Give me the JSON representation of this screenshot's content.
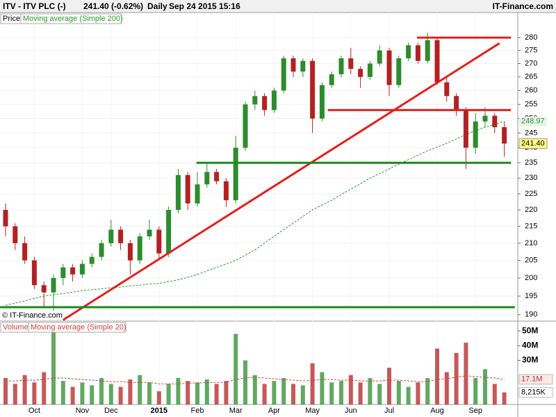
{
  "header": {
    "symbol": "ITV - ITV PLC (-)",
    "quote": "241.40 (-0.62%)",
    "interval": "Daily",
    "timestamp": "Sep 24 2015 15:16",
    "brand": "IT-Finance.com"
  },
  "watermark": "© IT-Finance.com",
  "chart_data": [
    {
      "type": "candlestick",
      "legend": "Price",
      "log_scale": true,
      "grid": true,
      "up_color": "#2e8b2e",
      "down_color": "#b22222",
      "categories": [
        null,
        null,
        null,
        "Oct",
        null,
        null,
        null,
        null,
        "Nov",
        null,
        null,
        "Dec",
        null,
        null,
        null,
        null,
        "2015",
        null,
        null,
        null,
        "Feb",
        null,
        null,
        null,
        "Mar",
        null,
        null,
        null,
        "Apr",
        null,
        null,
        null,
        "May",
        null,
        null,
        null,
        "Jun",
        null,
        null,
        null,
        "Jul",
        null,
        null,
        null,
        null,
        "Aug",
        null,
        null,
        null,
        "Sep",
        null,
        null,
        null
      ],
      "open": [
        220,
        215,
        210,
        205,
        198,
        196,
        200,
        203,
        201,
        204,
        206,
        210,
        214,
        210,
        205,
        212,
        214,
        207,
        220,
        231,
        222,
        228,
        232,
        229,
        223,
        240,
        255,
        258,
        253,
        260,
        272,
        267,
        271,
        250,
        262,
        266,
        272,
        268,
        265,
        270,
        275,
        262,
        272,
        277,
        271,
        279,
        263,
        258,
        253,
        240,
        249,
        251,
        247
      ],
      "high": [
        222,
        216,
        212,
        206,
        199,
        201,
        204,
        204,
        205,
        207,
        211,
        217,
        215,
        211,
        213,
        217,
        215,
        221,
        233,
        232,
        232,
        235,
        233,
        230,
        244,
        256,
        260,
        259,
        261,
        273,
        273,
        272,
        272,
        263,
        267,
        273,
        276,
        269,
        271,
        277,
        276,
        273,
        278,
        278,
        282,
        280,
        265,
        259,
        254,
        252,
        254,
        252,
        249
      ],
      "low": [
        212,
        208,
        204,
        197,
        192,
        191,
        198,
        199,
        200,
        203,
        205,
        209,
        208,
        201,
        204,
        211,
        205,
        206,
        219,
        220,
        221,
        227,
        228,
        221,
        222,
        239,
        253,
        251,
        252,
        259,
        265,
        265,
        245,
        249,
        261,
        265,
        266,
        261,
        264,
        269,
        258,
        261,
        271,
        270,
        270,
        262,
        256,
        251,
        233,
        238,
        247,
        245,
        237
      ],
      "close": [
        215,
        210,
        205,
        198,
        196,
        200,
        203,
        201,
        204,
        206,
        210,
        214,
        210,
        205,
        212,
        214,
        207,
        220,
        231,
        222,
        228,
        232,
        229,
        223,
        240,
        255,
        258,
        253,
        260,
        272,
        267,
        271,
        250,
        262,
        266,
        272,
        268,
        265,
        270,
        275,
        262,
        272,
        277,
        271,
        279,
        263,
        258,
        253,
        240,
        249,
        251,
        247,
        241.4
      ],
      "value_labels": [
        null,
        null,
        null,
        null,
        null,
        null,
        null,
        null,
        null,
        null,
        null,
        null,
        null,
        null,
        null,
        null,
        null,
        null,
        null,
        null,
        null,
        null,
        null,
        null,
        null,
        null,
        null,
        null,
        null,
        null,
        null,
        null,
        null,
        null,
        null,
        null,
        null,
        null,
        null,
        null,
        null,
        null,
        null,
        null,
        null,
        null,
        null,
        null,
        null,
        null,
        null,
        null,
        "241.40"
      ],
      "ylim": [
        188.3,
        290
      ],
      "yticks": [
        190,
        195,
        200,
        205,
        210,
        215,
        220,
        225,
        230,
        235,
        240,
        245,
        250,
        255,
        260,
        265,
        270,
        275,
        280
      ],
      "overlays": [
        {
          "name": "Moving average (Simple 200)",
          "color": "#2a9a2a",
          "values": [
            192.5,
            193.1,
            193.7,
            194.4,
            195,
            195.4,
            195.7,
            196.1,
            196.5,
            196.8,
            197,
            197.3,
            197.5,
            197.8,
            198,
            198.3,
            198.5,
            199,
            199.5,
            200.2,
            201,
            202,
            203,
            204,
            205,
            206.5,
            208,
            210,
            212,
            214,
            216,
            218,
            220,
            221.5,
            223,
            224.8,
            226.5,
            228.2,
            230,
            231.5,
            233,
            234.5,
            236,
            237.5,
            239,
            240.2,
            241.5,
            243,
            244.5,
            245.8,
            247,
            248,
            248.97
          ]
        }
      ],
      "trendlines": [
        {
          "color": "#e02020",
          "start": [
            6,
            188.6
          ],
          "end": [
            51.5,
            277.8
          ]
        },
        {
          "color": "#e02020",
          "start": [
            42.9,
            280
          ],
          "end": [
            52.7,
            280
          ]
        },
        {
          "color": "#e02020",
          "start": [
            33.6,
            253
          ],
          "end": [
            52.7,
            253
          ]
        },
        {
          "color": "#1a8a1a",
          "start": [
            19.9,
            235
          ],
          "end": [
            52.7,
            235
          ]
        },
        {
          "color": "#1a8a1a",
          "start": [
            -0.6,
            192
          ],
          "end": [
            53.1,
            192
          ]
        }
      ]
    },
    {
      "type": "bar",
      "ylim": [
        0,
        56.7
      ],
      "yticks": [
        {
          "value": 50,
          "label": "50M"
        },
        {
          "value": 40,
          "label": "40M"
        },
        {
          "value": 30,
          "label": "30M"
        }
      ],
      "series": [
        {
          "name": "Volume",
          "values": [
            18,
            14,
            20,
            15,
            22,
            49,
            16,
            12,
            15,
            13,
            18,
            14,
            12,
            17,
            20,
            15,
            9,
            14,
            18,
            16,
            15,
            17,
            14,
            16,
            48,
            30,
            20,
            14,
            16,
            18,
            14,
            13,
            28,
            22,
            15,
            16,
            20,
            15,
            18,
            14,
            25,
            16,
            12,
            15,
            18,
            38,
            22,
            35,
            42,
            18,
            24,
            14,
            8.215
          ],
          "value_labels": [
            null,
            null,
            null,
            null,
            null,
            null,
            null,
            null,
            null,
            null,
            null,
            null,
            null,
            null,
            null,
            null,
            null,
            null,
            null,
            null,
            null,
            null,
            null,
            null,
            null,
            null,
            null,
            null,
            null,
            null,
            null,
            null,
            null,
            null,
            null,
            null,
            null,
            null,
            null,
            null,
            null,
            null,
            null,
            null,
            null,
            null,
            null,
            null,
            null,
            null,
            null,
            null,
            "8,215K"
          ]
        },
        {
          "name": "Moving average (Simple 20)",
          "color": "#d04040",
          "values": [
            16,
            16,
            16.5,
            16.5,
            17,
            18,
            18,
            17.5,
            17,
            16.5,
            16,
            15.5,
            15.5,
            15,
            15,
            15,
            14,
            14,
            14,
            14.5,
            14.5,
            15,
            15,
            15,
            17,
            18,
            18.5,
            18,
            17.5,
            17,
            16.5,
            16,
            16.5,
            17,
            17,
            16.5,
            16.5,
            16,
            16,
            16,
            16.5,
            16.5,
            16,
            15.5,
            15.5,
            17,
            17.5,
            18.5,
            19.5,
            19,
            18.5,
            18,
            17.1
          ],
          "value_labels": [
            null,
            null,
            null,
            null,
            null,
            null,
            null,
            null,
            null,
            null,
            null,
            null,
            null,
            null,
            null,
            null,
            null,
            null,
            null,
            null,
            null,
            null,
            null,
            null,
            null,
            null,
            null,
            null,
            null,
            null,
            null,
            null,
            null,
            null,
            null,
            null,
            null,
            null,
            null,
            null,
            null,
            null,
            null,
            null,
            null,
            null,
            null,
            null,
            null,
            null,
            null,
            null,
            "17.1M"
          ]
        }
      ]
    }
  ]
}
